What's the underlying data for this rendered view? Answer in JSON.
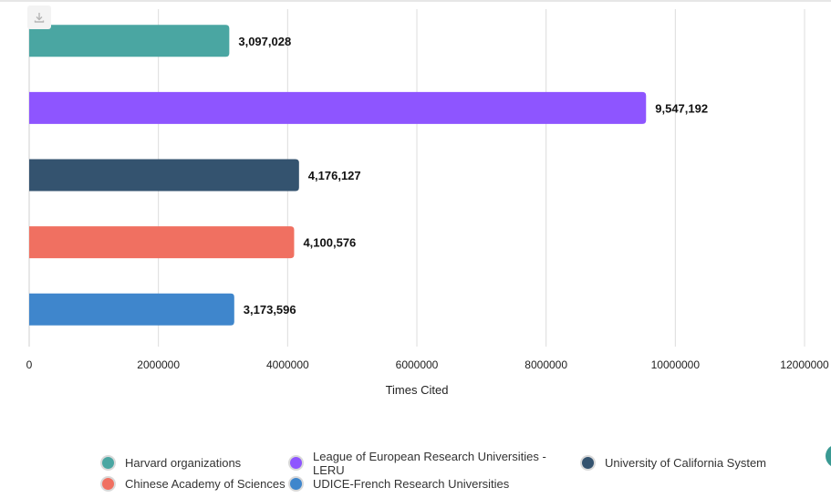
{
  "chart_data": {
    "type": "bar",
    "orientation": "horizontal",
    "categories": [
      "Harvard organizations",
      "League of European Research Universities - LERU",
      "University of California System",
      "Chinese Academy of Sciences",
      "UDICE-French Research Universities"
    ],
    "values": [
      3097028,
      9547192,
      4176127,
      4100576,
      3173596
    ],
    "value_labels": [
      "3,097,028",
      "9,547,192",
      "4,176,127",
      "4,100,576",
      "3,173,596"
    ],
    "colors": [
      "#4aa6a2",
      "#8e55ff",
      "#34536f",
      "#f07061",
      "#3f86cc"
    ],
    "xlabel": "Times Cited",
    "ylabel": "",
    "xlim": [
      0,
      12000000
    ],
    "x_ticks": [
      0,
      2000000,
      4000000,
      6000000,
      8000000,
      10000000,
      12000000
    ],
    "x_tick_labels": [
      "0",
      "2000000",
      "4000000",
      "6000000",
      "8000000",
      "10000000",
      "12000000"
    ],
    "grid": true,
    "legend_position": "bottom"
  },
  "legend": {
    "items": [
      {
        "label": "Harvard organizations",
        "color": "#4aa6a2"
      },
      {
        "label": "League of European Research Universities - LERU",
        "color": "#8e55ff"
      },
      {
        "label": "University of California System",
        "color": "#34536f"
      },
      {
        "label": "Chinese Academy of Sciences",
        "color": "#f07061"
      },
      {
        "label": "UDICE-French Research Universities",
        "color": "#3f86cc"
      }
    ]
  },
  "toolbar": {
    "download_icon": "download-icon"
  }
}
